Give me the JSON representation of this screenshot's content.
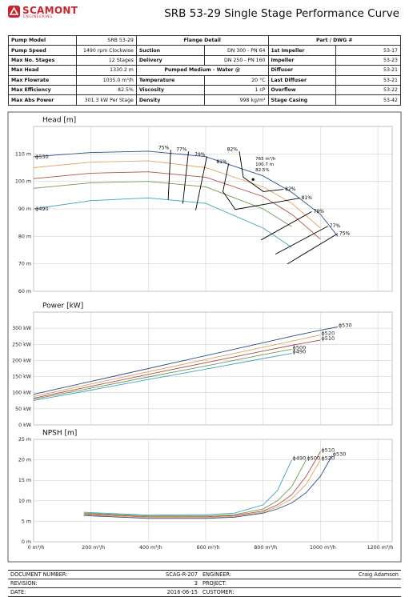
{
  "header": {
    "logo": "SCAMONT",
    "logo_sub": "ENGINEERING",
    "title": "SRB 53-29 Single Stage Performance Curve"
  },
  "specs": {
    "rows": [
      {
        "left": [
          "Pump Model",
          "SRB 53-29"
        ],
        "mid": "Flange Detail",
        "right": "Part / DWG #"
      },
      {
        "left": [
          "Pump Speed",
          "1490 rpm Clockwise"
        ],
        "mid": [
          "Suction",
          "DN 300 - PN 64"
        ],
        "right": [
          "1st Impeller",
          "53-17"
        ]
      },
      {
        "left": [
          "Max No. Stages",
          "12 Stages"
        ],
        "mid": [
          "Delivery",
          "DN 250 - PN 160"
        ],
        "right": [
          "Impeller",
          "53-23"
        ]
      },
      {
        "left": [
          "Max Head",
          "1330.2 m"
        ],
        "mid": "Pumped Medium - Water @",
        "right": [
          "Diffuser",
          "53-21"
        ]
      },
      {
        "left": [
          "Max Flowrate",
          "1035.0 m³/h"
        ],
        "mid": [
          "Temperature",
          "20 °C"
        ],
        "right": [
          "Last Diffuser",
          "53-21"
        ]
      },
      {
        "left": [
          "Max Efficiency",
          "82.5%"
        ],
        "mid": [
          "Viscosity",
          "1 cP"
        ],
        "right": [
          "Overflow",
          "53-22"
        ]
      },
      {
        "left": [
          "Max Abs Power",
          "301.3 kW Per Stage"
        ],
        "mid": [
          "Density",
          "998 kg/m³"
        ],
        "right": [
          "Stage Casing",
          "53-42"
        ]
      }
    ]
  },
  "chart_data": [
    {
      "type": "line",
      "title": "Head [m]",
      "label_position": "start",
      "x": [
        0,
        200,
        400,
        600,
        800,
        900,
        1000,
        1060
      ],
      "xlim": [
        0,
        1250
      ],
      "xgrid": [
        0,
        200,
        400,
        600,
        800,
        1000,
        1200
      ],
      "ylim": [
        60,
        120
      ],
      "yticks": [
        {
          "value": 60,
          "label": "60 m"
        },
        {
          "value": 70,
          "label": "70 m"
        },
        {
          "value": 80,
          "label": "80 m"
        },
        {
          "value": 90,
          "label": "90 m"
        },
        {
          "value": 100,
          "label": "100 m"
        },
        {
          "value": 110,
          "label": "110 m"
        }
      ],
      "series": [
        {
          "name": "ϕ530",
          "color": "#2f4f8f",
          "values": [
            109,
            110.5,
            111,
            109,
            102,
            96,
            88,
            80
          ]
        },
        {
          "name": "ϕ520",
          "color": "#e3a35f",
          "values": [
            105,
            107,
            107.5,
            105,
            98,
            92,
            83,
            null
          ]
        },
        {
          "name": "ϕ510",
          "color": "#b3504a",
          "values": [
            101,
            103,
            103.5,
            101.5,
            94.5,
            88,
            79,
            null
          ]
        },
        {
          "name": "ϕ500",
          "color": "#6f9a4f",
          "values": [
            97.5,
            99.5,
            100,
            98,
            90,
            83.5,
            null,
            null
          ]
        },
        {
          "name": "ϕ490",
          "color": "#3fa2c2",
          "values": [
            90,
            93,
            94,
            92,
            83,
            76,
            null,
            null
          ]
        }
      ],
      "efficiency_lines": [
        {
          "label": "75%",
          "x": [
            478,
            469,
            null,
            885,
            1060
          ],
          "y": [
            111.5,
            93.3,
            null,
            70,
            81
          ]
        },
        {
          "label": "77%",
          "x": [
            540,
            520,
            null,
            843,
            1026
          ],
          "y": [
            110.9,
            91.9,
            null,
            73.5,
            83.7
          ]
        },
        {
          "label": "79%",
          "x": [
            604,
            565,
            null,
            793,
            970
          ],
          "y": [
            109.1,
            89.5,
            null,
            78.7,
            89
          ]
        },
        {
          "label": "81%",
          "x": [
            680,
            660,
            703,
            928
          ],
          "y": [
            106.5,
            96.3,
            89.8,
            93.9
          ]
        },
        {
          "label": "82%",
          "x": [
            717,
            731,
            801,
            871
          ],
          "y": [
            110.9,
            101.5,
            96.3,
            97.1
          ]
        }
      ],
      "bep": {
        "x": 765,
        "y": 100.7,
        "labels": [
          "765 m³/h",
          "100.7 m",
          "82.5%"
        ]
      }
    },
    {
      "type": "line",
      "title": "Power [kW]",
      "label_position": "end",
      "x": [
        0,
        200,
        400,
        600,
        800,
        900,
        1000,
        1060
      ],
      "xlim": [
        0,
        1250
      ],
      "xgrid": [
        0,
        200,
        400,
        600,
        800,
        1000,
        1200
      ],
      "ylim": [
        0,
        350
      ],
      "yticks": [
        {
          "value": 0,
          "label": "0 kW"
        },
        {
          "value": 50,
          "label": "50 kW"
        },
        {
          "value": 100,
          "label": "100 kW"
        },
        {
          "value": 150,
          "label": "150 kW"
        },
        {
          "value": 200,
          "label": "200 kW"
        },
        {
          "value": 250,
          "label": "250 kW"
        },
        {
          "value": 300,
          "label": "300 kW"
        }
      ],
      "series": [
        {
          "name": "ϕ530",
          "color": "#2f4f8f",
          "values": [
            95,
            135,
            175,
            215,
            255,
            275,
            294,
            304
          ]
        },
        {
          "name": "ϕ520",
          "color": "#e3a35f",
          "values": [
            88,
            127,
            165,
            203,
            241,
            260,
            279,
            null
          ]
        },
        {
          "name": "ϕ510",
          "color": "#b3504a",
          "values": [
            83,
            120,
            157,
            193,
            229,
            247,
            263,
            null
          ]
        },
        {
          "name": "ϕ500",
          "color": "#6f9a4f",
          "values": [
            80,
            114,
            149,
            183,
            218,
            235,
            null,
            null
          ]
        },
        {
          "name": "ϕ490",
          "color": "#3fa2c2",
          "values": [
            76,
            108,
            141,
            173,
            206,
            222,
            null,
            null
          ]
        }
      ]
    },
    {
      "type": "line",
      "title": "NPSH [m]",
      "label_position": "end",
      "x": [
        175,
        400,
        600,
        700,
        800,
        850,
        900,
        950,
        1000,
        1040
      ],
      "xlim": [
        0,
        1250
      ],
      "xticks": [
        {
          "value": 0,
          "label": "0 m³/h"
        },
        {
          "value": 200,
          "label": "200 m³/h"
        },
        {
          "value": 400,
          "label": "400 m³/h"
        },
        {
          "value": 600,
          "label": "600 m³/h"
        },
        {
          "value": 800,
          "label": "800 m³/h"
        },
        {
          "value": 1000,
          "label": "1000 m³/h"
        },
        {
          "value": 1200,
          "label": "1200 m³/h"
        }
      ],
      "ylim": [
        0,
        25
      ],
      "yticks": [
        {
          "value": 0,
          "label": "0 m"
        },
        {
          "value": 5,
          "label": "5 m"
        },
        {
          "value": 10,
          "label": "10 m"
        },
        {
          "value": 15,
          "label": "15 m"
        },
        {
          "value": 20,
          "label": "20 m"
        },
        {
          "value": 25,
          "label": "25 m"
        }
      ],
      "series": [
        {
          "name": "ϕ490",
          "color": "#3fa2c2",
          "values": [
            7.2,
            6.5,
            6.6,
            7,
            9,
            12.5,
            20,
            null,
            null,
            null
          ]
        },
        {
          "name": "ϕ500",
          "color": "#6f9a4f",
          "values": [
            7,
            6.3,
            6.3,
            6.6,
            8,
            10,
            13.5,
            20,
            null,
            null
          ]
        },
        {
          "name": "ϕ510",
          "color": "#b3504a",
          "values": [
            6.8,
            6.1,
            6.1,
            6.4,
            7.5,
            9,
            11.5,
            16,
            22,
            null
          ]
        },
        {
          "name": "ϕ520",
          "color": "#e3a35f",
          "values": [
            6.6,
            5.9,
            5.9,
            6.2,
            7.2,
            8.5,
            10.5,
            14,
            20,
            null
          ]
        },
        {
          "name": "ϕ530",
          "color": "#2f4f8f",
          "values": [
            6.4,
            5.7,
            5.7,
            6,
            7,
            8,
            9.5,
            12,
            16,
            21
          ]
        }
      ]
    }
  ],
  "footer": {
    "rows": [
      [
        "DOCUMENT NUMBER:",
        "SCAG-R-207",
        "ENGINEER:",
        "Craig Adamson"
      ],
      [
        "REVISION:",
        "3",
        "PROJECT:"
      ],
      [
        "DATE:",
        "2016-06-15",
        "CUSTOMER:"
      ]
    ]
  }
}
